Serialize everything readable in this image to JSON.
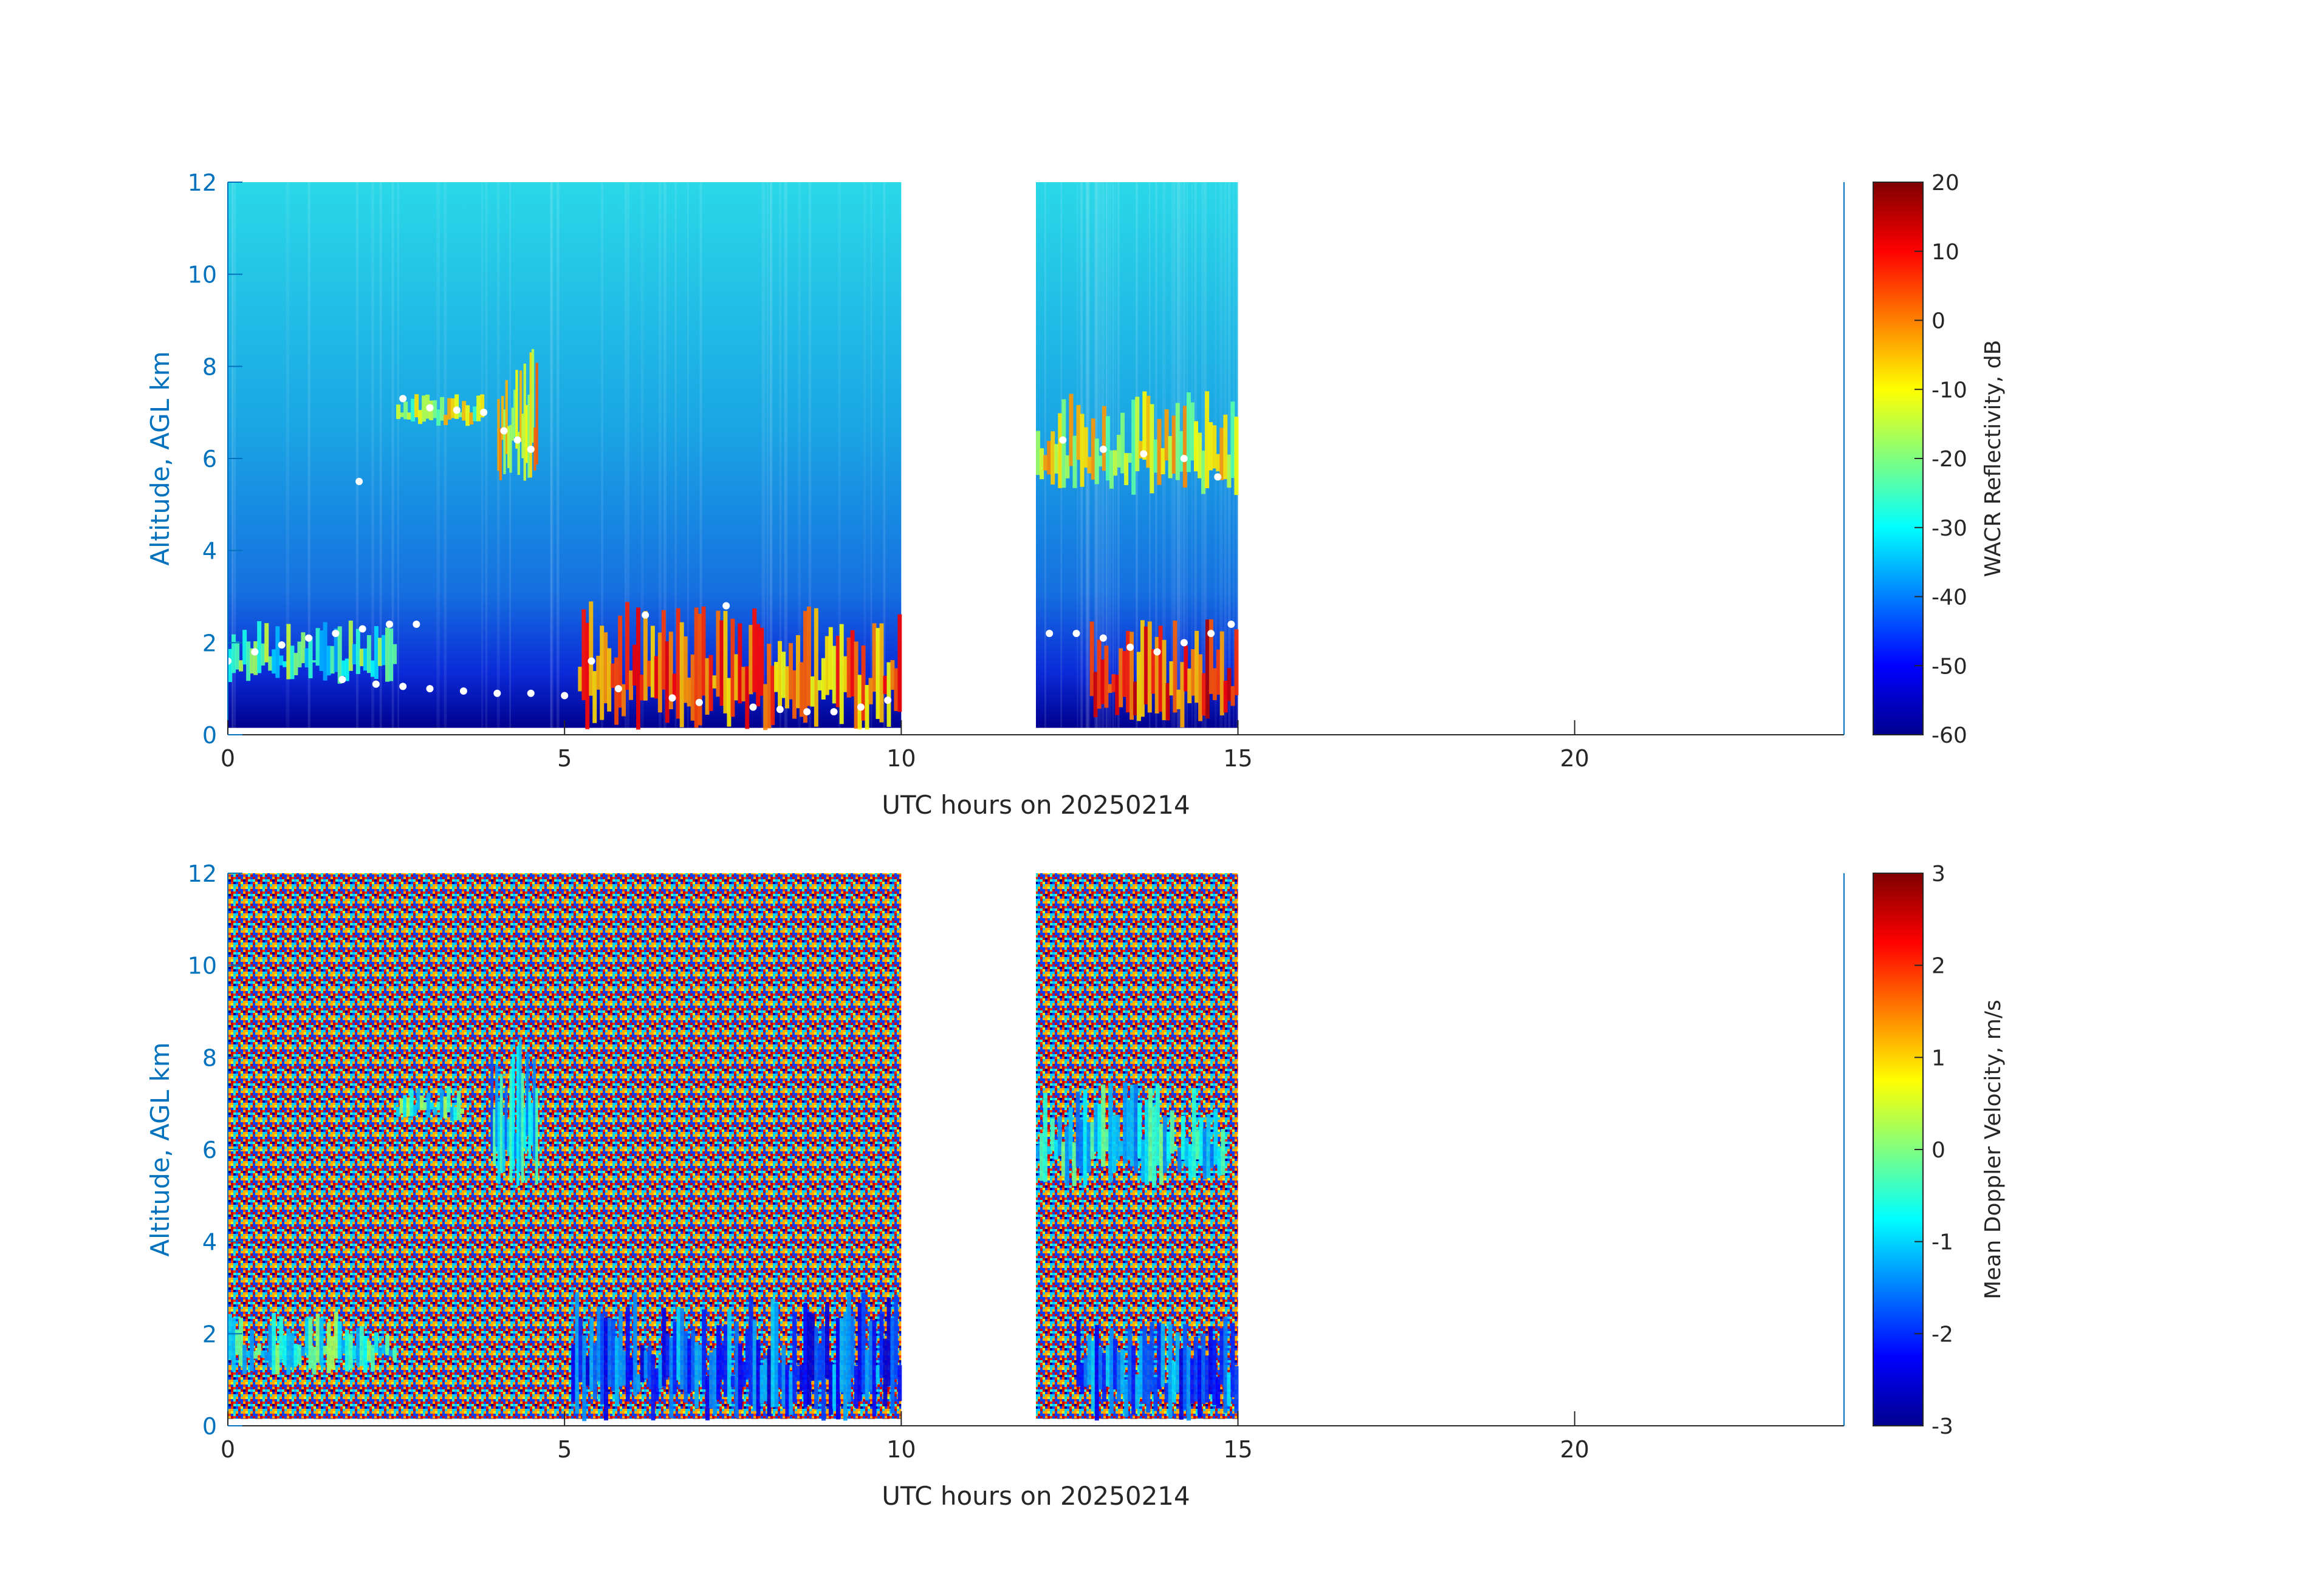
{
  "colors": {
    "axis_left": "#0072BD",
    "axis_dark": "#262626",
    "background": "#ffffff",
    "clear_sky_top": "#2ad8e8",
    "clear_sky_mid": "#1a9de0",
    "near_surface": "#00008f",
    "cloud_base_marker": "#ffffff",
    "noise_palette": [
      "#7f0000",
      "#cc0000",
      "#ff3300",
      "#ffaa00",
      "#d9ff26",
      "#33ffcc",
      "#00ccff",
      "#0044ff",
      "#00008f"
    ]
  },
  "chart_data": [
    {
      "type": "heatmap",
      "name": "reflectivity",
      "xlabel": "UTC hours on 20250214",
      "ylabel": "Altitude, AGL km",
      "xlim": [
        0,
        24
      ],
      "ylim": [
        0,
        12
      ],
      "xticks": [
        0,
        5,
        10,
        15,
        20
      ],
      "yticks": [
        0,
        2,
        4,
        6,
        8,
        10,
        12
      ],
      "data_segments": [
        [
          0,
          10
        ],
        [
          12,
          15
        ]
      ],
      "colorbar": {
        "label": "WACR Reflectivity, dB",
        "range": [
          -60,
          20
        ],
        "ticks": [
          20,
          10,
          0,
          -10,
          -20,
          -30,
          -40,
          -50,
          -60
        ],
        "colormap": "jet"
      },
      "cloud_features": [
        {
          "x_range": [
            2.5,
            3.8
          ],
          "alt_range": [
            6.7,
            7.4
          ],
          "value_db": -15
        },
        {
          "x_range": [
            4.0,
            4.6
          ],
          "alt_range": [
            5.5,
            8.5
          ],
          "value_db": -8
        },
        {
          "x_range": [
            0,
            2.5
          ],
          "alt_range": [
            1.1,
            2.5
          ],
          "value_db": -25
        },
        {
          "x_range": [
            5.2,
            10.0
          ],
          "alt_range": [
            0.1,
            2.9
          ],
          "value_db": 0
        },
        {
          "x_range": [
            12.0,
            15.0
          ],
          "alt_range": [
            5.2,
            7.5
          ],
          "value_db": -12
        },
        {
          "x_range": [
            12.8,
            15.0
          ],
          "alt_range": [
            0.1,
            2.6
          ],
          "value_db": 5
        }
      ],
      "cloud_base_markers": [
        {
          "x": 0.0,
          "y": 1.6
        },
        {
          "x": 0.4,
          "y": 1.8
        },
        {
          "x": 0.8,
          "y": 1.95
        },
        {
          "x": 1.2,
          "y": 2.1
        },
        {
          "x": 1.6,
          "y": 2.2
        },
        {
          "x": 2.0,
          "y": 2.3
        },
        {
          "x": 2.4,
          "y": 2.4
        },
        {
          "x": 2.8,
          "y": 2.4
        },
        {
          "x": 1.7,
          "y": 1.2
        },
        {
          "x": 2.2,
          "y": 1.1
        },
        {
          "x": 2.6,
          "y": 1.05
        },
        {
          "x": 3.0,
          "y": 1.0
        },
        {
          "x": 3.5,
          "y": 0.95
        },
        {
          "x": 4.0,
          "y": 0.9
        },
        {
          "x": 4.5,
          "y": 0.9
        },
        {
          "x": 5.0,
          "y": 0.85
        },
        {
          "x": 2.6,
          "y": 7.3
        },
        {
          "x": 3.0,
          "y": 7.1
        },
        {
          "x": 3.4,
          "y": 7.05
        },
        {
          "x": 3.8,
          "y": 7.0
        },
        {
          "x": 4.1,
          "y": 6.6
        },
        {
          "x": 4.3,
          "y": 6.4
        },
        {
          "x": 4.5,
          "y": 6.2
        },
        {
          "x": 1.95,
          "y": 5.5
        },
        {
          "x": 5.4,
          "y": 1.6
        },
        {
          "x": 5.8,
          "y": 1.0
        },
        {
          "x": 6.2,
          "y": 2.6
        },
        {
          "x": 6.6,
          "y": 0.8
        },
        {
          "x": 7.0,
          "y": 0.7
        },
        {
          "x": 7.4,
          "y": 2.8
        },
        {
          "x": 7.8,
          "y": 0.6
        },
        {
          "x": 8.2,
          "y": 0.55
        },
        {
          "x": 8.6,
          "y": 0.5
        },
        {
          "x": 9.0,
          "y": 0.5
        },
        {
          "x": 9.4,
          "y": 0.6
        },
        {
          "x": 9.8,
          "y": 0.75
        },
        {
          "x": 12.2,
          "y": 2.2
        },
        {
          "x": 12.6,
          "y": 2.2
        },
        {
          "x": 13.0,
          "y": 2.1
        },
        {
          "x": 13.4,
          "y": 1.9
        },
        {
          "x": 13.8,
          "y": 1.8
        },
        {
          "x": 14.2,
          "y": 2.0
        },
        {
          "x": 14.6,
          "y": 2.2
        },
        {
          "x": 14.9,
          "y": 2.4
        },
        {
          "x": 12.4,
          "y": 6.4
        },
        {
          "x": 13.0,
          "y": 6.2
        },
        {
          "x": 13.6,
          "y": 6.1
        },
        {
          "x": 14.2,
          "y": 6.0
        },
        {
          "x": 14.7,
          "y": 5.6
        }
      ]
    },
    {
      "type": "heatmap",
      "name": "doppler_velocity",
      "xlabel": "UTC hours on 20250214",
      "ylabel": "Altitude, AGL km",
      "xlim": [
        0,
        24
      ],
      "ylim": [
        0,
        12
      ],
      "xticks": [
        0,
        5,
        10,
        15,
        20
      ],
      "yticks": [
        0,
        2,
        4,
        6,
        8,
        10,
        12
      ],
      "data_segments": [
        [
          0,
          10
        ],
        [
          12,
          15
        ]
      ],
      "colorbar": {
        "label": "Mean Doppler Velocity, m/s",
        "range": [
          -3,
          3
        ],
        "ticks": [
          3,
          2,
          1,
          0,
          -1,
          -2,
          -3
        ],
        "colormap": "jet"
      },
      "cloud_features": [
        {
          "x_range": [
            2.5,
            3.5
          ],
          "alt_range": [
            6.6,
            7.4
          ],
          "value_ms": -0.5
        },
        {
          "x_range": [
            3.9,
            4.6
          ],
          "alt_range": [
            5.2,
            8.5
          ],
          "value_ms": -1.0
        },
        {
          "x_range": [
            0,
            2.5
          ],
          "alt_range": [
            1.1,
            2.5
          ],
          "value_ms": -0.6
        },
        {
          "x_range": [
            5.1,
            10.0
          ],
          "alt_range": [
            0.1,
            2.9
          ],
          "value_ms": -1.8
        },
        {
          "x_range": [
            12.0,
            14.8
          ],
          "alt_range": [
            5.2,
            7.5
          ],
          "value_ms": -0.8
        },
        {
          "x_range": [
            12.6,
            15.0
          ],
          "alt_range": [
            0.1,
            2.4
          ],
          "value_ms": -1.7
        }
      ]
    }
  ]
}
